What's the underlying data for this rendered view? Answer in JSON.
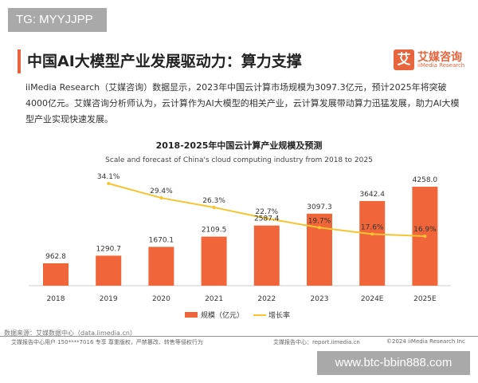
{
  "watermark_top": "TG: MYYJJPP",
  "watermark_bottom": "www.btc-bbin888.com",
  "header": {
    "title": "中国AI大模型产业发展驱动力：算力支撑",
    "logo_mark": "艾",
    "logo_cn": "艾媒咨询",
    "logo_en": "iiMedia Research"
  },
  "paragraph": "iiMedia Research（艾媒咨询）数据显示，2023年中国云计算市场规模为3097.3亿元，预计2025年将突破4000亿元。艾媒咨询分析师认为，云计算作为AI大模型的相关产业，云计算发展带动算力迅猛发展，助力AI大模型产业实现快速发展。",
  "chart_data": {
    "type": "bar",
    "title": "2018-2025年中国云计算产业规模及预测",
    "subtitle": "Scale and forecast of China's cloud computing industry from 2018 to 2025",
    "categories": [
      "2018",
      "2019",
      "2020",
      "2021",
      "2022",
      "2023",
      "2024E",
      "2025E"
    ],
    "series": [
      {
        "name": "规模（亿元）",
        "type": "bar",
        "color": "#f0663a",
        "values": [
          962.8,
          1290.7,
          1670.1,
          2109.5,
          2587.4,
          3097.3,
          3642.4,
          4258.0
        ],
        "labels": [
          "962.8",
          "1290.7",
          "1670.1",
          "2109.5",
          "2587.4",
          "3097.3",
          "3642.4",
          "4258.0"
        ]
      },
      {
        "name": "增长率",
        "type": "line",
        "color": "#f5c431",
        "values": [
          null,
          34.1,
          29.4,
          26.3,
          22.7,
          19.7,
          17.6,
          16.9
        ],
        "labels": [
          "",
          "34.1%",
          "29.4%",
          "26.3%",
          "22.7%",
          "19.7%",
          "17.6%",
          "16.9%"
        ]
      }
    ],
    "legend": "bottom",
    "grid": false
  },
  "footer": {
    "source": "数据来源：艾媒数据中心（data.iimedia.cn）",
    "license": "艾媒报告中心用户 150****7016 专享 尊重版权，严禁篡改、转售等侵权行为",
    "report_center": "艾媒报告中心：report.iimedia.cn",
    "copyright": "©2024 iiMedia Research Inc"
  }
}
